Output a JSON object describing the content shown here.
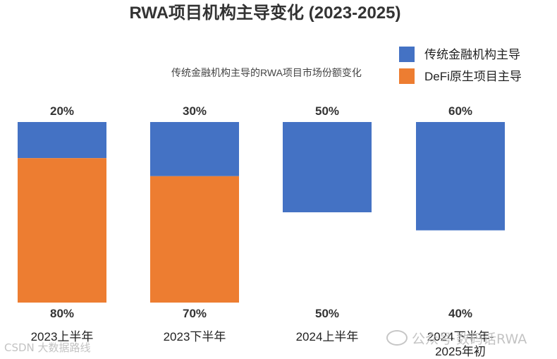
{
  "chart_data": {
    "type": "bar",
    "title": "RWA项目机构主导变化 (2023-2025)",
    "subtitle": "传统金融机构主导的RWA项目市场份额变化",
    "categories": [
      [
        "2023上半年"
      ],
      [
        "2023下半年"
      ],
      [
        "2024上半年"
      ],
      [
        "2024下半年-",
        "2025年初"
      ]
    ],
    "series": [
      {
        "name": "传统金融机构主导",
        "color": "#4472C4",
        "values": [
          20,
          30,
          50,
          60
        ],
        "labels": [
          "20%",
          "30%",
          "50%",
          "60%"
        ]
      },
      {
        "name": "DeFi原生项目主导",
        "color": "#ED7D31",
        "values": [
          80,
          70,
          50,
          40
        ],
        "labels": [
          "80%",
          "70%",
          "50%",
          "40%"
        ]
      }
    ],
    "ylim": [
      0,
      100
    ],
    "xlabel": "",
    "ylabel": "",
    "grid": false,
    "legend": "top-right"
  },
  "watermarks": {
    "left": "CSDN 大数据路线",
    "right": "公众号·数码话RWA"
  }
}
